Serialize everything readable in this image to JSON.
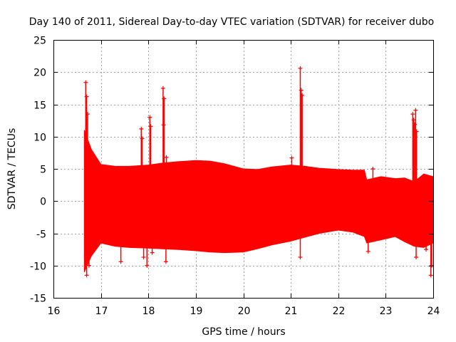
{
  "chart_data": {
    "type": "scatter",
    "title": "Day 140 of 2011, Sidereal Day-to-day VTEC variation (SDTVAR) for receiver dubo",
    "xlabel": "GPS time / hours",
    "ylabel": "SDTVAR / TECUs",
    "xlim": [
      16,
      24
    ],
    "ylim": [
      -15,
      25
    ],
    "xticks": [
      "16",
      "17",
      "18",
      "19",
      "20",
      "21",
      "22",
      "23",
      "24"
    ],
    "yticks": [
      "-15",
      "-10",
      "-5",
      "0",
      "5",
      "10",
      "15",
      "20",
      "25"
    ],
    "grid": true,
    "series": [
      {
        "name": "SDTVAR",
        "color": "#ff0000",
        "marker": "+",
        "band_x": [
          16.65,
          16.8,
          17.0,
          17.3,
          17.6,
          18.0,
          18.3,
          18.6,
          19.0,
          19.3,
          19.6,
          20.0,
          20.3,
          20.6,
          21.0,
          21.3,
          21.6,
          22.0,
          22.3,
          22.55,
          22.6,
          22.9,
          23.2,
          23.4,
          23.6,
          23.8,
          24.0
        ],
        "band_upper": [
          11.0,
          8.0,
          5.7,
          5.4,
          5.4,
          5.6,
          5.9,
          6.1,
          6.3,
          6.2,
          5.8,
          5.0,
          4.9,
          5.3,
          5.6,
          5.4,
          5.1,
          4.9,
          4.8,
          4.8,
          3.3,
          3.8,
          3.5,
          3.6,
          3.0,
          4.2,
          3.8
        ],
        "band_lower": [
          -11.0,
          -8.5,
          -6.5,
          -7.0,
          -7.2,
          -7.3,
          -7.4,
          -7.5,
          -7.7,
          -7.9,
          -8.0,
          -7.9,
          -7.4,
          -6.8,
          -6.2,
          -5.6,
          -5.0,
          -4.5,
          -4.8,
          -5.5,
          -6.5,
          -6.0,
          -5.5,
          -6.3,
          -7.0,
          -7.2,
          -6.5
        ],
        "spikes": [
          {
            "x": 16.68,
            "y": 18.4
          },
          {
            "x": 16.7,
            "y": 16.2
          },
          {
            "x": 16.72,
            "y": 13.5
          },
          {
            "x": 16.7,
            "y": -11.5
          },
          {
            "x": 16.75,
            "y": -10.0
          },
          {
            "x": 17.42,
            "y": -9.4
          },
          {
            "x": 17.85,
            "y": 11.2
          },
          {
            "x": 17.87,
            "y": 9.7
          },
          {
            "x": 17.9,
            "y": -8.7
          },
          {
            "x": 17.97,
            "y": -10.0
          },
          {
            "x": 18.03,
            "y": 13.0
          },
          {
            "x": 18.05,
            "y": 11.6
          },
          {
            "x": 18.08,
            "y": -8.0
          },
          {
            "x": 18.31,
            "y": 17.5
          },
          {
            "x": 18.33,
            "y": 15.9
          },
          {
            "x": 18.32,
            "y": 11.8
          },
          {
            "x": 18.38,
            "y": 6.8
          },
          {
            "x": 18.37,
            "y": -9.4
          },
          {
            "x": 21.02,
            "y": 6.7
          },
          {
            "x": 21.2,
            "y": 20.6
          },
          {
            "x": 21.22,
            "y": 17.2
          },
          {
            "x": 21.24,
            "y": 16.4
          },
          {
            "x": 21.2,
            "y": -8.7
          },
          {
            "x": 22.63,
            "y": -7.8
          },
          {
            "x": 22.73,
            "y": 5.0
          },
          {
            "x": 23.57,
            "y": 13.5
          },
          {
            "x": 23.59,
            "y": 12.6
          },
          {
            "x": 23.61,
            "y": 11.9
          },
          {
            "x": 23.63,
            "y": 14.1
          },
          {
            "x": 23.65,
            "y": 10.8
          },
          {
            "x": 23.58,
            "y": -6.0
          },
          {
            "x": 23.64,
            "y": -8.7
          },
          {
            "x": 23.85,
            "y": -7.5
          },
          {
            "x": 23.95,
            "y": -11.5
          },
          {
            "x": 23.97,
            "y": -10.0
          }
        ]
      }
    ]
  }
}
